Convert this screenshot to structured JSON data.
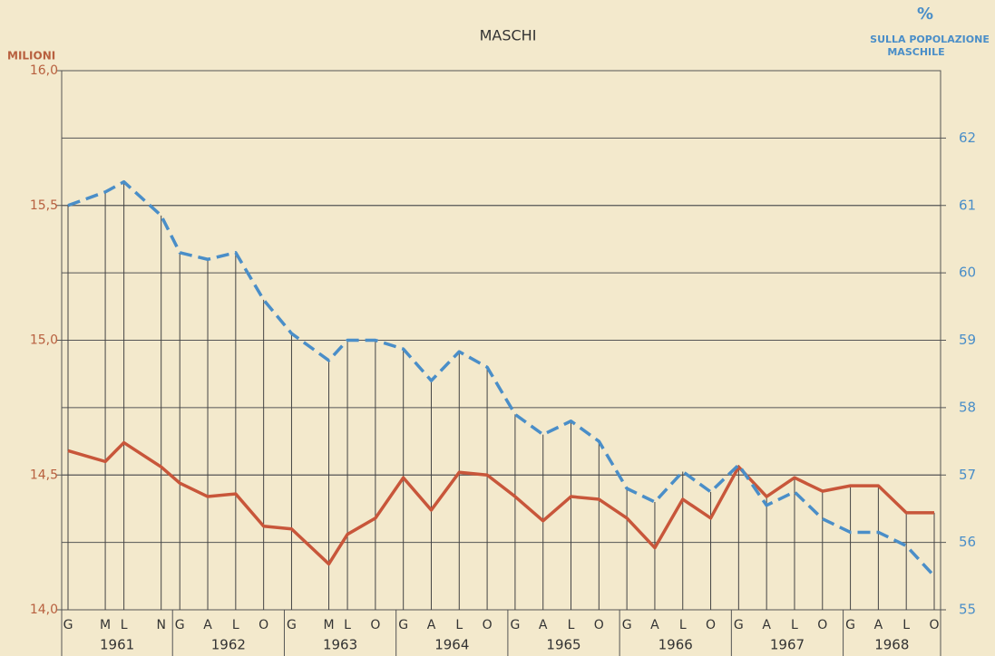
{
  "chart_data": {
    "type": "line",
    "title": "MASCHI",
    "ylabel": "MILIONI",
    "y2label": [
      "%",
      "SULLA POPOLAZIONE",
      "MASCHILE"
    ],
    "x": [
      "1961-01",
      "1961-05",
      "1961-07",
      "1961-11",
      "1962-01",
      "1962-04",
      "1962-07",
      "1962-10",
      "1963-01",
      "1963-05",
      "1963-07",
      "1963-10",
      "1964-01",
      "1964-04",
      "1964-07",
      "1964-10",
      "1965-01",
      "1965-04",
      "1965-07",
      "1965-10",
      "1966-01",
      "1966-04",
      "1966-07",
      "1966-10",
      "1967-01",
      "1967-04",
      "1967-07",
      "1967-10",
      "1968-01",
      "1968-04",
      "1968-07",
      "1968-10"
    ],
    "xticks": [
      {
        "value": "1961-01",
        "label": "G"
      },
      {
        "value": "1961-05",
        "label": "M"
      },
      {
        "value": "1961-07",
        "label": "L"
      },
      {
        "value": "1961-11",
        "label": "N"
      },
      {
        "value": "1962-01",
        "label": "G"
      },
      {
        "value": "1962-04",
        "label": "A"
      },
      {
        "value": "1962-07",
        "label": "L"
      },
      {
        "value": "1962-10",
        "label": "O"
      },
      {
        "value": "1963-01",
        "label": "G"
      },
      {
        "value": "1963-05",
        "label": "M"
      },
      {
        "value": "1963-07",
        "label": "L"
      },
      {
        "value": "1963-10",
        "label": "O"
      },
      {
        "value": "1964-01",
        "label": "G"
      },
      {
        "value": "1964-04",
        "label": "A"
      },
      {
        "value": "1964-07",
        "label": "L"
      },
      {
        "value": "1964-10",
        "label": "O"
      },
      {
        "value": "1965-01",
        "label": "G"
      },
      {
        "value": "1965-04",
        "label": "A"
      },
      {
        "value": "1965-07",
        "label": "L"
      },
      {
        "value": "1965-10",
        "label": "O"
      },
      {
        "value": "1966-01",
        "label": "G"
      },
      {
        "value": "1966-04",
        "label": "A"
      },
      {
        "value": "1966-07",
        "label": "L"
      },
      {
        "value": "1966-10",
        "label": "O"
      },
      {
        "value": "1967-01",
        "label": "G"
      },
      {
        "value": "1967-04",
        "label": "A"
      },
      {
        "value": "1967-07",
        "label": "L"
      },
      {
        "value": "1967-10",
        "label": "O"
      },
      {
        "value": "1968-01",
        "label": "G"
      },
      {
        "value": "1968-04",
        "label": "A"
      },
      {
        "value": "1968-07",
        "label": "L"
      },
      {
        "value": "1968-10",
        "label": "O"
      }
    ],
    "years": [
      "1961",
      "1962",
      "1963",
      "1964",
      "1965",
      "1966",
      "1967",
      "1968"
    ],
    "xlim": [
      "1961-01",
      "1968-10"
    ],
    "ylim": [
      14,
      16
    ],
    "yticks": [
      {
        "value": 14,
        "label": "14,0"
      },
      {
        "value": 14.5,
        "label": "14,5"
      },
      {
        "value": 15,
        "label": "15,0"
      },
      {
        "value": 15.5,
        "label": "15,5"
      },
      {
        "value": 16,
        "label": "16,0"
      }
    ],
    "y2lim": [
      55,
      63
    ],
    "y2ticks": [
      55,
      56,
      57,
      58,
      59,
      60,
      61,
      62
    ],
    "grid": true,
    "series": [
      {
        "color": "#c8563a",
        "axis": "y",
        "dash": false,
        "values": [
          14.59,
          14.55,
          14.62,
          14.53,
          14.47,
          14.42,
          14.43,
          14.31,
          14.3,
          14.17,
          14.28,
          14.34,
          14.49,
          14.37,
          14.51,
          14.5,
          14.42,
          14.33,
          14.42,
          14.41,
          14.34,
          14.23,
          14.41,
          14.34,
          14.53,
          14.42,
          14.49,
          14.44,
          14.46,
          14.46,
          14.36,
          14.36
        ]
      },
      {
        "color": "#4a8ec8",
        "axis": "y2",
        "dash": true,
        "values": [
          61.0,
          61.2,
          61.35,
          60.85,
          60.3,
          60.2,
          60.3,
          59.6,
          59.1,
          58.7,
          59.0,
          59.0,
          58.87,
          58.4,
          58.83,
          58.6,
          57.9,
          57.6,
          57.8,
          57.5,
          56.8,
          56.6,
          57.05,
          56.75,
          57.15,
          56.55,
          56.75,
          56.35,
          56.15,
          56.15,
          55.95,
          55.5
        ]
      }
    ]
  }
}
